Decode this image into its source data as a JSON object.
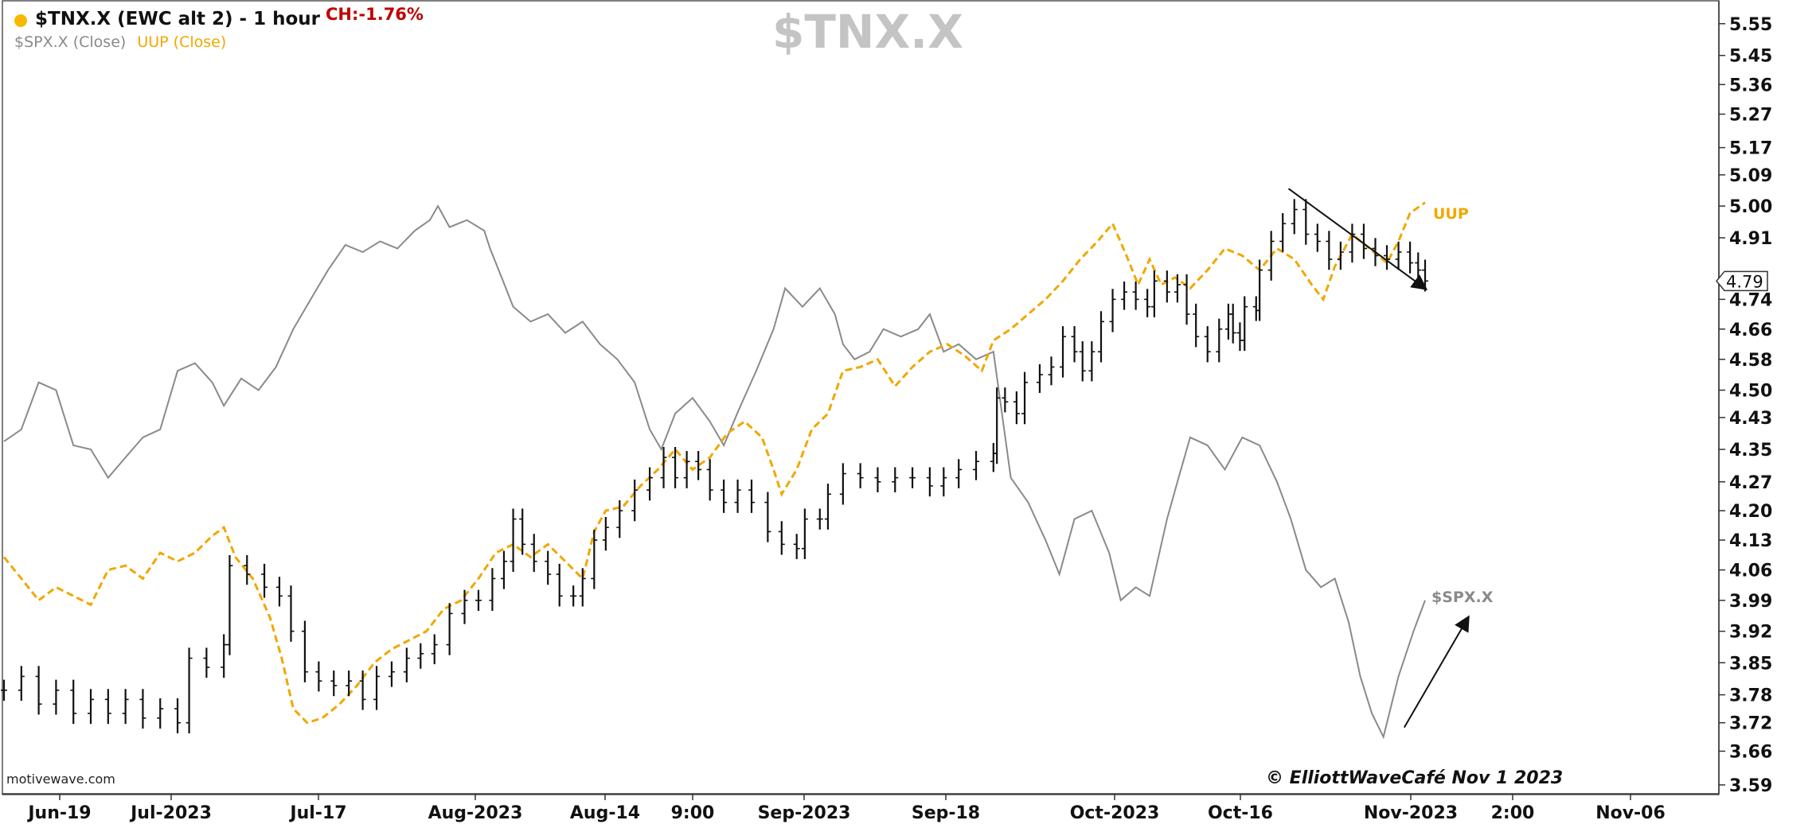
{
  "header": {
    "title": "$TNX.X (EWC alt 2) - 1 hour",
    "change": "CH:-1.76%",
    "legend_spx": "$SPX.X (Close)",
    "legend_uup": "UUP (Close)",
    "watermark": "$TNX.X"
  },
  "footer": {
    "brand": "motivewave.com",
    "copyright": "© ElliottWaveCafé Nov 1  2023"
  },
  "colors": {
    "tnx": "#111111",
    "uup": "#f0a800",
    "spx": "#8a8a8a",
    "change": "#c00000",
    "dot": "#f6b900"
  },
  "chart_data": {
    "type": "line",
    "title": "$TNX.X (EWC alt 2) - 1 hour",
    "x_ticks": [
      "Jun-19",
      "Jul-2023",
      "Jul-17",
      "Aug-2023",
      "Aug-14",
      "9:00",
      "Sep-2023",
      "Sep-18",
      "Oct-2023",
      "Oct-16",
      "Nov-2023",
      "2:00",
      "Nov-06"
    ],
    "y_ticks": [
      3.59,
      3.66,
      3.72,
      3.78,
      3.85,
      3.92,
      3.99,
      4.06,
      4.13,
      4.2,
      4.27,
      4.35,
      4.43,
      4.5,
      4.58,
      4.66,
      4.74,
      4.79,
      4.91,
      5.0,
      5.09,
      5.17,
      5.27,
      5.36,
      5.45,
      5.55
    ],
    "ylim": [
      3.58,
      5.59
    ],
    "y_scale": "log",
    "current_value": "4.79",
    "annotations": {
      "uup_label": "UUP",
      "spx_label": "$SPX.X"
    },
    "series": [
      {
        "name": "$TNX.X",
        "style": "ohlc-bars",
        "points": [
          [
            0,
            3.79
          ],
          [
            15,
            3.82
          ],
          [
            30,
            3.76
          ],
          [
            45,
            3.79
          ],
          [
            60,
            3.74
          ],
          [
            75,
            3.77
          ],
          [
            90,
            3.74
          ],
          [
            105,
            3.77
          ],
          [
            120,
            3.73
          ],
          [
            135,
            3.75
          ],
          [
            150,
            3.72
          ],
          [
            160,
            3.86
          ],
          [
            175,
            3.84
          ],
          [
            190,
            3.89
          ],
          [
            195,
            4.07
          ],
          [
            210,
            4.05
          ],
          [
            225,
            4.02
          ],
          [
            238,
            4.0
          ],
          [
            248,
            3.92
          ],
          [
            260,
            3.83
          ],
          [
            272,
            3.81
          ],
          [
            285,
            3.8
          ],
          [
            298,
            3.81
          ],
          [
            310,
            3.77
          ],
          [
            322,
            3.82
          ],
          [
            335,
            3.83
          ],
          [
            348,
            3.86
          ],
          [
            360,
            3.87
          ],
          [
            372,
            3.89
          ],
          [
            385,
            3.96
          ],
          [
            398,
            3.99
          ],
          [
            410,
            3.99
          ],
          [
            422,
            4.04
          ],
          [
            432,
            4.08
          ],
          [
            440,
            4.18
          ],
          [
            448,
            4.12
          ],
          [
            458,
            4.08
          ],
          [
            470,
            4.05
          ],
          [
            480,
            4.0
          ],
          [
            492,
            4.0
          ],
          [
            500,
            4.04
          ],
          [
            510,
            4.13
          ],
          [
            520,
            4.16
          ],
          [
            532,
            4.2
          ],
          [
            545,
            4.25
          ],
          [
            558,
            4.28
          ],
          [
            570,
            4.33
          ],
          [
            580,
            4.28
          ],
          [
            590,
            4.32
          ],
          [
            600,
            4.3
          ],
          [
            610,
            4.25
          ],
          [
            622,
            4.22
          ],
          [
            634,
            4.25
          ],
          [
            646,
            4.22
          ],
          [
            660,
            4.15
          ],
          [
            672,
            4.12
          ],
          [
            685,
            4.11
          ],
          [
            692,
            4.18
          ],
          [
            705,
            4.18
          ],
          [
            712,
            4.24
          ],
          [
            725,
            4.29
          ],
          [
            740,
            4.28
          ],
          [
            755,
            4.27
          ],
          [
            770,
            4.28
          ],
          [
            785,
            4.28
          ],
          [
            800,
            4.26
          ],
          [
            812,
            4.28
          ],
          [
            825,
            4.3
          ],
          [
            840,
            4.32
          ],
          [
            855,
            4.34
          ],
          [
            858,
            4.48
          ],
          [
            865,
            4.47
          ],
          [
            875,
            4.44
          ],
          [
            882,
            4.52
          ],
          [
            895,
            4.54
          ],
          [
            905,
            4.56
          ],
          [
            915,
            4.64
          ],
          [
            925,
            4.6
          ],
          [
            932,
            4.55
          ],
          [
            940,
            4.6
          ],
          [
            948,
            4.68
          ],
          [
            958,
            4.74
          ],
          [
            968,
            4.76
          ],
          [
            978,
            4.74
          ],
          [
            988,
            4.72
          ],
          [
            994,
            4.79
          ],
          [
            1005,
            4.76
          ],
          [
            1014,
            4.78
          ],
          [
            1022,
            4.7
          ],
          [
            1030,
            4.64
          ],
          [
            1040,
            4.6
          ],
          [
            1050,
            4.66
          ],
          [
            1058,
            4.7
          ],
          [
            1062,
            4.65
          ],
          [
            1068,
            4.63
          ],
          [
            1072,
            4.72
          ],
          [
            1082,
            4.71
          ],
          [
            1085,
            4.82
          ],
          [
            1095,
            4.9
          ],
          [
            1105,
            4.95
          ],
          [
            1115,
            4.99
          ],
          [
            1125,
            4.92
          ],
          [
            1135,
            4.9
          ],
          [
            1145,
            4.85
          ],
          [
            1155,
            4.87
          ],
          [
            1165,
            4.92
          ],
          [
            1175,
            4.88
          ],
          [
            1185,
            4.86
          ],
          [
            1195,
            4.85
          ],
          [
            1205,
            4.87
          ],
          [
            1215,
            4.84
          ],
          [
            1222,
            4.82
          ],
          [
            1228,
            4.79
          ]
        ]
      },
      {
        "name": "UUP",
        "style": "dashed-line",
        "points": [
          [
            0,
            4.09
          ],
          [
            15,
            4.04
          ],
          [
            30,
            3.99
          ],
          [
            45,
            4.02
          ],
          [
            60,
            4.0
          ],
          [
            75,
            3.98
          ],
          [
            90,
            4.06
          ],
          [
            105,
            4.07
          ],
          [
            120,
            4.04
          ],
          [
            135,
            4.1
          ],
          [
            150,
            4.08
          ],
          [
            165,
            4.1
          ],
          [
            180,
            4.14
          ],
          [
            190,
            4.16
          ],
          [
            200,
            4.09
          ],
          [
            215,
            4.04
          ],
          [
            230,
            3.95
          ],
          [
            240,
            3.86
          ],
          [
            250,
            3.75
          ],
          [
            262,
            3.72
          ],
          [
            275,
            3.73
          ],
          [
            290,
            3.76
          ],
          [
            305,
            3.8
          ],
          [
            320,
            3.85
          ],
          [
            335,
            3.88
          ],
          [
            350,
            3.9
          ],
          [
            365,
            3.92
          ],
          [
            380,
            3.97
          ],
          [
            395,
            3.99
          ],
          [
            410,
            4.04
          ],
          [
            425,
            4.1
          ],
          [
            440,
            4.12
          ],
          [
            455,
            4.09
          ],
          [
            470,
            4.12
          ],
          [
            485,
            4.08
          ],
          [
            500,
            4.04
          ],
          [
            510,
            4.15
          ],
          [
            520,
            4.2
          ],
          [
            535,
            4.21
          ],
          [
            550,
            4.26
          ],
          [
            565,
            4.3
          ],
          [
            580,
            4.35
          ],
          [
            595,
            4.3
          ],
          [
            610,
            4.33
          ],
          [
            625,
            4.39
          ],
          [
            640,
            4.42
          ],
          [
            655,
            4.38
          ],
          [
            665,
            4.3
          ],
          [
            672,
            4.24
          ],
          [
            685,
            4.3
          ],
          [
            698,
            4.4
          ],
          [
            712,
            4.44
          ],
          [
            725,
            4.55
          ],
          [
            740,
            4.56
          ],
          [
            755,
            4.58
          ],
          [
            770,
            4.51
          ],
          [
            785,
            4.56
          ],
          [
            800,
            4.6
          ],
          [
            815,
            4.62
          ],
          [
            830,
            4.59
          ],
          [
            845,
            4.55
          ],
          [
            855,
            4.63
          ],
          [
            870,
            4.66
          ],
          [
            885,
            4.7
          ],
          [
            900,
            4.74
          ],
          [
            915,
            4.79
          ],
          [
            930,
            4.85
          ],
          [
            945,
            4.9
          ],
          [
            958,
            4.95
          ],
          [
            970,
            4.86
          ],
          [
            980,
            4.78
          ],
          [
            990,
            4.85
          ],
          [
            1000,
            4.78
          ],
          [
            1012,
            4.8
          ],
          [
            1025,
            4.77
          ],
          [
            1040,
            4.82
          ],
          [
            1055,
            4.88
          ],
          [
            1070,
            4.86
          ],
          [
            1085,
            4.82
          ],
          [
            1100,
            4.88
          ],
          [
            1115,
            4.85
          ],
          [
            1130,
            4.78
          ],
          [
            1140,
            4.74
          ],
          [
            1150,
            4.83
          ],
          [
            1165,
            4.92
          ],
          [
            1180,
            4.88
          ],
          [
            1195,
            4.84
          ],
          [
            1205,
            4.9
          ],
          [
            1215,
            4.98
          ],
          [
            1228,
            5.01
          ]
        ]
      },
      {
        "name": "$SPX.X",
        "style": "line",
        "points": [
          [
            0,
            4.37
          ],
          [
            15,
            4.4
          ],
          [
            30,
            4.52
          ],
          [
            45,
            4.5
          ],
          [
            60,
            4.36
          ],
          [
            75,
            4.35
          ],
          [
            90,
            4.28
          ],
          [
            105,
            4.33
          ],
          [
            120,
            4.38
          ],
          [
            135,
            4.4
          ],
          [
            150,
            4.55
          ],
          [
            165,
            4.57
          ],
          [
            180,
            4.52
          ],
          [
            190,
            4.46
          ],
          [
            205,
            4.53
          ],
          [
            220,
            4.5
          ],
          [
            235,
            4.56
          ],
          [
            250,
            4.66
          ],
          [
            265,
            4.74
          ],
          [
            280,
            4.82
          ],
          [
            295,
            4.89
          ],
          [
            310,
            4.87
          ],
          [
            325,
            4.9
          ],
          [
            340,
            4.88
          ],
          [
            355,
            4.93
          ],
          [
            368,
            4.96
          ],
          [
            375,
            5.0
          ],
          [
            385,
            4.94
          ],
          [
            400,
            4.96
          ],
          [
            415,
            4.93
          ],
          [
            420,
            4.88
          ],
          [
            430,
            4.8
          ],
          [
            440,
            4.72
          ],
          [
            455,
            4.68
          ],
          [
            470,
            4.7
          ],
          [
            485,
            4.65
          ],
          [
            500,
            4.68
          ],
          [
            515,
            4.62
          ],
          [
            530,
            4.58
          ],
          [
            545,
            4.52
          ],
          [
            558,
            4.4
          ],
          [
            568,
            4.35
          ],
          [
            580,
            4.44
          ],
          [
            595,
            4.48
          ],
          [
            610,
            4.42
          ],
          [
            622,
            4.36
          ],
          [
            635,
            4.45
          ],
          [
            650,
            4.55
          ],
          [
            665,
            4.66
          ],
          [
            675,
            4.77
          ],
          [
            690,
            4.72
          ],
          [
            705,
            4.77
          ],
          [
            718,
            4.7
          ],
          [
            725,
            4.62
          ],
          [
            735,
            4.58
          ],
          [
            748,
            4.6
          ],
          [
            760,
            4.66
          ],
          [
            775,
            4.64
          ],
          [
            790,
            4.66
          ],
          [
            800,
            4.7
          ],
          [
            812,
            4.6
          ],
          [
            825,
            4.62
          ],
          [
            840,
            4.58
          ],
          [
            855,
            4.6
          ],
          [
            870,
            4.28
          ],
          [
            885,
            4.22
          ],
          [
            900,
            4.13
          ],
          [
            912,
            4.05
          ],
          [
            925,
            4.18
          ],
          [
            940,
            4.2
          ],
          [
            955,
            4.1
          ],
          [
            965,
            3.99
          ],
          [
            978,
            4.02
          ],
          [
            990,
            4.0
          ],
          [
            1005,
            4.18
          ],
          [
            1015,
            4.28
          ],
          [
            1025,
            4.38
          ],
          [
            1040,
            4.36
          ],
          [
            1055,
            4.3
          ],
          [
            1070,
            4.38
          ],
          [
            1085,
            4.36
          ],
          [
            1100,
            4.27
          ],
          [
            1112,
            4.18
          ],
          [
            1125,
            4.06
          ],
          [
            1138,
            4.02
          ],
          [
            1150,
            4.04
          ],
          [
            1162,
            3.94
          ],
          [
            1172,
            3.82
          ],
          [
            1182,
            3.74
          ],
          [
            1192,
            3.69
          ],
          [
            1205,
            3.82
          ],
          [
            1218,
            3.92
          ],
          [
            1228,
            3.99
          ]
        ]
      }
    ]
  }
}
